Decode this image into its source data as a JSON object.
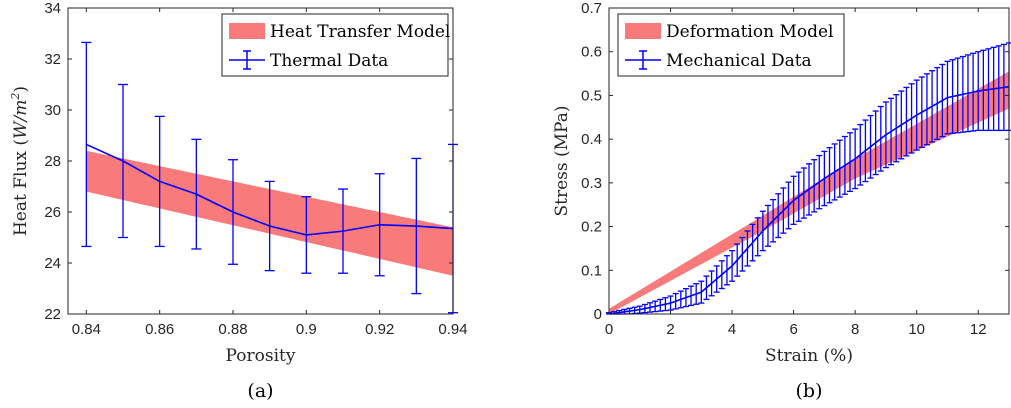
{
  "chart_data": [
    {
      "type": "line",
      "caption": "(a)",
      "xlabel": "Porosity",
      "ylabel": "Heat Flux (",
      "ylabel_unit": "W/m",
      "ylabel_sup": "2",
      "ylabel_close": ")",
      "xlim": [
        0.835,
        0.94
      ],
      "ylim": [
        22,
        34
      ],
      "xticks": [
        0.84,
        0.86,
        0.88,
        0.9,
        0.92,
        0.94
      ],
      "xtick_labels": [
        "0.84",
        "0.86",
        "0.88",
        "0.9",
        "0.92",
        "0.94"
      ],
      "yticks": [
        22,
        24,
        26,
        28,
        30,
        32,
        34
      ],
      "ytick_labels": [
        "22",
        "24",
        "26",
        "28",
        "30",
        "32",
        "34"
      ],
      "legend_position": "top-right",
      "band": {
        "name": "Heat Transfer Model",
        "color": "#f87a7a",
        "x": [
          0.84,
          0.94
        ],
        "lower": [
          26.8,
          23.5
        ],
        "upper": [
          28.4,
          25.4
        ]
      },
      "series": [
        {
          "name": "Thermal Data",
          "color": "#0000ff",
          "x": [
            0.84,
            0.85,
            0.86,
            0.87,
            0.88,
            0.89,
            0.9,
            0.91,
            0.92,
            0.93,
            0.94
          ],
          "y": [
            28.65,
            28.0,
            27.2,
            26.7,
            26.0,
            25.45,
            25.1,
            25.25,
            25.5,
            25.45,
            25.35
          ],
          "err": [
            4.0,
            3.0,
            2.55,
            2.15,
            2.05,
            1.75,
            1.5,
            1.65,
            2.0,
            2.65,
            3.3
          ]
        }
      ]
    },
    {
      "type": "line",
      "caption": "(b)",
      "xlabel": "Strain (%)",
      "ylabel": "Stress (MPa)",
      "xlim": [
        0,
        13
      ],
      "ylim": [
        0,
        0.7
      ],
      "xticks": [
        0,
        2,
        4,
        6,
        8,
        10,
        12
      ],
      "xtick_labels": [
        "0",
        "2",
        "4",
        "6",
        "8",
        "10",
        "12"
      ],
      "yticks": [
        0,
        0.1,
        0.2,
        0.3,
        0.4,
        0.5,
        0.6,
        0.7
      ],
      "ytick_labels": [
        "0",
        "0.1",
        "0.2",
        "0.3",
        "0.4",
        "0.5",
        "0.6",
        "0.7"
      ],
      "legend_position": "top-left",
      "band": {
        "name": "Deformation Model",
        "color": "#f87a7a",
        "x": [
          0,
          5,
          8,
          13
        ],
        "lower": [
          0.0,
          0.19,
          0.31,
          0.47
        ],
        "upper": [
          0.012,
          0.225,
          0.355,
          0.555
        ]
      },
      "series": [
        {
          "name": "Mechanical Data",
          "color": "#0000ff",
          "x": [
            0,
            1,
            2,
            3,
            4,
            5,
            6,
            7,
            8,
            9,
            10,
            11,
            12,
            13
          ],
          "y": [
            0.0,
            0.01,
            0.025,
            0.05,
            0.11,
            0.19,
            0.26,
            0.31,
            0.355,
            0.41,
            0.455,
            0.495,
            0.51,
            0.52
          ],
          "err": [
            0.003,
            0.008,
            0.016,
            0.025,
            0.035,
            0.045,
            0.055,
            0.062,
            0.068,
            0.075,
            0.08,
            0.083,
            0.09,
            0.1
          ]
        }
      ]
    }
  ]
}
